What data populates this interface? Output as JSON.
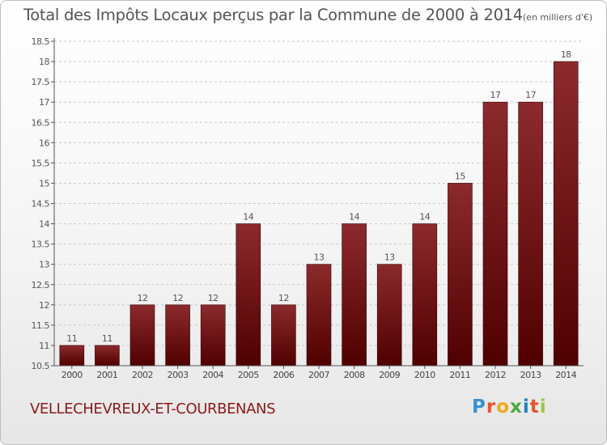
{
  "header": {
    "title": "Total des Impôts Locaux perçus par la Commune de 2000 à 2014",
    "unit": "(en milliers d'€)"
  },
  "footer": {
    "commune": "VELLECHEVREUX-ET-COURBENANS",
    "logo_letters": [
      "P",
      "r",
      "o",
      "x",
      "i",
      "t",
      "i"
    ],
    "logo_colors": [
      "#3a8fd0",
      "#e9542a",
      "#f0a81b",
      "#4aa843",
      "#1e7fc4",
      "#e9542a",
      "#9bc83a"
    ]
  },
  "chart_data": {
    "type": "bar",
    "title": "Total des Impôts Locaux perçus par la Commune de 2000 à 2014",
    "xlabel": "",
    "ylabel": "",
    "categories": [
      "2000",
      "2001",
      "2002",
      "2003",
      "2004",
      "2005",
      "2006",
      "2007",
      "2008",
      "2009",
      "2010",
      "2011",
      "2012",
      "2013",
      "2014"
    ],
    "values": [
      11,
      11,
      12,
      12,
      12,
      14,
      12,
      13,
      14,
      13,
      14,
      15,
      17,
      17,
      18
    ],
    "data_labels": [
      "11",
      "11",
      "12",
      "12",
      "12",
      "14",
      "12",
      "13",
      "14",
      "13",
      "14",
      "15",
      "17",
      "17",
      "18"
    ],
    "ylim": [
      10.5,
      18.5
    ],
    "yticks": [
      10.5,
      11,
      11.5,
      12,
      12.5,
      13,
      13.5,
      14,
      14.5,
      15,
      15.5,
      16,
      16.5,
      17,
      17.5,
      18,
      18.5
    ],
    "ytick_labels": [
      "10.5",
      "11",
      "11.5",
      "12",
      "12.5",
      "13",
      "13.5",
      "14",
      "14.5",
      "15",
      "15.5",
      "16",
      "16.5",
      "17",
      "17.5",
      "18",
      "18.5"
    ],
    "grid": true,
    "bar_color": "#8b1a1a",
    "legend": "none"
  }
}
